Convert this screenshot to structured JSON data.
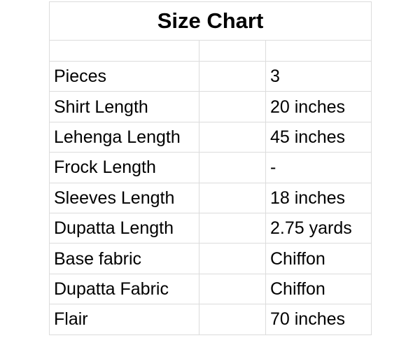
{
  "title": "Size Chart",
  "rows": [
    {
      "label": "Pieces",
      "value": "3"
    },
    {
      "label": "Shirt Length",
      "value": "20 inches"
    },
    {
      "label": "Lehenga Length",
      "value": "45 inches"
    },
    {
      "label": "Frock Length",
      "value": "-"
    },
    {
      "label": "Sleeves Length",
      "value": "18 inches"
    },
    {
      "label": "Dupatta Length",
      "value": "2.75 yards"
    },
    {
      "label": "Base fabric",
      "value": "Chiffon"
    },
    {
      "label": "Dupatta Fabric",
      "value": "Chiffon"
    },
    {
      "label": "Flair",
      "value": "70 inches"
    }
  ]
}
